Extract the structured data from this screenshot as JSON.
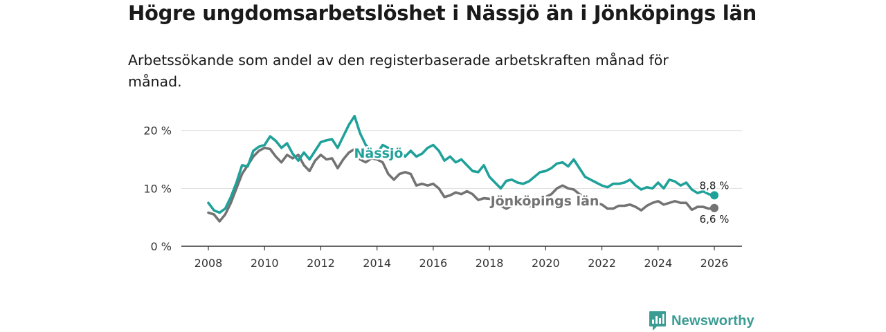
{
  "title": "Högre ungdomsarbetslöshet i Nässjö än i Jönköpings län",
  "subtitle": "Arbetssökande som andel av den registerbaserade arbetskraften månad för månad.",
  "brand": "Newsworthy",
  "colors": {
    "nassjo": "#1fa19a",
    "lan": "#737373",
    "grid": "#dddddd",
    "axis": "#333333",
    "brand": "#3a9c93"
  },
  "chart_data": {
    "type": "line",
    "title": "Högre ungdomsarbetslöshet i Nässjö än i Jönköpings län",
    "xlabel": "",
    "ylabel": "",
    "xlim": [
      2007.6,
      2026.9
    ],
    "ylim": [
      0,
      22
    ],
    "y_ticks": [
      0,
      10,
      20
    ],
    "y_tick_labels": [
      "0 %",
      "10 %",
      "20 %"
    ],
    "x_ticks": [
      "2008",
      "2010",
      "2012",
      "2014",
      "2016",
      "2018",
      "2020",
      "2022",
      "2024",
      "2026"
    ],
    "series": [
      {
        "name": "Nässjö",
        "label": "Nässjö",
        "end_label": "8,8 %",
        "points": [
          [
            2008.0,
            7.5
          ],
          [
            2008.2,
            6.2
          ],
          [
            2008.4,
            5.8
          ],
          [
            2008.6,
            6.5
          ],
          [
            2008.8,
            8.5
          ],
          [
            2009.0,
            11.0
          ],
          [
            2009.2,
            14.0
          ],
          [
            2009.4,
            13.8
          ],
          [
            2009.6,
            16.5
          ],
          [
            2009.8,
            17.2
          ],
          [
            2010.0,
            17.5
          ],
          [
            2010.2,
            19.0
          ],
          [
            2010.4,
            18.2
          ],
          [
            2010.6,
            17.0
          ],
          [
            2010.8,
            17.8
          ],
          [
            2011.0,
            16.0
          ],
          [
            2011.2,
            14.8
          ],
          [
            2011.4,
            16.2
          ],
          [
            2011.6,
            15.0
          ],
          [
            2011.8,
            16.5
          ],
          [
            2012.0,
            18.0
          ],
          [
            2012.2,
            18.3
          ],
          [
            2012.4,
            18.5
          ],
          [
            2012.6,
            17.0
          ],
          [
            2012.8,
            19.0
          ],
          [
            2013.0,
            21.0
          ],
          [
            2013.2,
            22.5
          ],
          [
            2013.4,
            19.5
          ],
          [
            2013.6,
            17.5
          ],
          [
            2013.8,
            16.5
          ],
          [
            2014.0,
            16.0
          ],
          [
            2014.2,
            17.5
          ],
          [
            2014.4,
            17.0
          ],
          [
            2014.6,
            15.8
          ],
          [
            2014.8,
            16.5
          ],
          [
            2015.0,
            15.5
          ],
          [
            2015.2,
            16.5
          ],
          [
            2015.4,
            15.5
          ],
          [
            2015.6,
            16.0
          ],
          [
            2015.8,
            17.0
          ],
          [
            2016.0,
            17.5
          ],
          [
            2016.2,
            16.5
          ],
          [
            2016.4,
            14.8
          ],
          [
            2016.6,
            15.5
          ],
          [
            2016.8,
            14.5
          ],
          [
            2017.0,
            15.0
          ],
          [
            2017.2,
            14.0
          ],
          [
            2017.4,
            13.0
          ],
          [
            2017.6,
            12.8
          ],
          [
            2017.8,
            14.0
          ],
          [
            2018.0,
            12.0
          ],
          [
            2018.2,
            11.0
          ],
          [
            2018.4,
            10.0
          ],
          [
            2018.6,
            11.3
          ],
          [
            2018.8,
            11.5
          ],
          [
            2019.0,
            11.0
          ],
          [
            2019.2,
            10.8
          ],
          [
            2019.4,
            11.2
          ],
          [
            2019.6,
            12.0
          ],
          [
            2019.8,
            12.8
          ],
          [
            2020.0,
            13.0
          ],
          [
            2020.2,
            13.5
          ],
          [
            2020.4,
            14.3
          ],
          [
            2020.6,
            14.5
          ],
          [
            2020.8,
            13.8
          ],
          [
            2021.0,
            15.0
          ],
          [
            2021.2,
            13.5
          ],
          [
            2021.4,
            12.0
          ],
          [
            2021.6,
            11.5
          ],
          [
            2021.8,
            11.0
          ],
          [
            2022.0,
            10.5
          ],
          [
            2022.2,
            10.2
          ],
          [
            2022.4,
            10.8
          ],
          [
            2022.6,
            10.8
          ],
          [
            2022.8,
            11.0
          ],
          [
            2023.0,
            11.5
          ],
          [
            2023.2,
            10.5
          ],
          [
            2023.4,
            9.8
          ],
          [
            2023.6,
            10.2
          ],
          [
            2023.8,
            10.0
          ],
          [
            2024.0,
            11.0
          ],
          [
            2024.2,
            10.0
          ],
          [
            2024.4,
            11.5
          ],
          [
            2024.6,
            11.2
          ],
          [
            2024.8,
            10.5
          ],
          [
            2025.0,
            11.0
          ],
          [
            2025.2,
            9.8
          ],
          [
            2025.4,
            9.2
          ],
          [
            2025.6,
            9.5
          ],
          [
            2025.8,
            9.0
          ],
          [
            2026.0,
            8.8
          ]
        ]
      },
      {
        "name": "Jönköpings län",
        "label": "Jönköpings län",
        "end_label": "6,6 %",
        "points": [
          [
            2008.0,
            5.8
          ],
          [
            2008.2,
            5.5
          ],
          [
            2008.4,
            4.3
          ],
          [
            2008.6,
            5.5
          ],
          [
            2008.8,
            7.5
          ],
          [
            2009.0,
            10.0
          ],
          [
            2009.2,
            12.5
          ],
          [
            2009.4,
            14.0
          ],
          [
            2009.6,
            15.5
          ],
          [
            2009.8,
            16.5
          ],
          [
            2010.0,
            17.0
          ],
          [
            2010.2,
            16.8
          ],
          [
            2010.4,
            15.5
          ],
          [
            2010.6,
            14.5
          ],
          [
            2010.8,
            15.8
          ],
          [
            2011.0,
            15.2
          ],
          [
            2011.2,
            15.8
          ],
          [
            2011.4,
            14.0
          ],
          [
            2011.6,
            13.0
          ],
          [
            2011.8,
            14.8
          ],
          [
            2012.0,
            15.8
          ],
          [
            2012.2,
            15.0
          ],
          [
            2012.4,
            15.2
          ],
          [
            2012.6,
            13.5
          ],
          [
            2012.8,
            15.0
          ],
          [
            2013.0,
            16.2
          ],
          [
            2013.2,
            16.8
          ],
          [
            2013.4,
            15.0
          ],
          [
            2013.6,
            14.5
          ],
          [
            2013.8,
            15.2
          ],
          [
            2014.0,
            15.0
          ],
          [
            2014.2,
            14.5
          ],
          [
            2014.4,
            12.5
          ],
          [
            2014.6,
            11.5
          ],
          [
            2014.8,
            12.5
          ],
          [
            2015.0,
            12.8
          ],
          [
            2015.2,
            12.5
          ],
          [
            2015.4,
            10.5
          ],
          [
            2015.6,
            10.8
          ],
          [
            2015.8,
            10.5
          ],
          [
            2016.0,
            10.8
          ],
          [
            2016.2,
            10.0
          ],
          [
            2016.4,
            8.5
          ],
          [
            2016.6,
            8.8
          ],
          [
            2016.8,
            9.3
          ],
          [
            2017.0,
            9.0
          ],
          [
            2017.2,
            9.5
          ],
          [
            2017.4,
            9.0
          ],
          [
            2017.6,
            8.0
          ],
          [
            2017.8,
            8.3
          ],
          [
            2018.0,
            8.2
          ],
          [
            2018.2,
            7.8
          ],
          [
            2018.4,
            7.0
          ],
          [
            2018.6,
            6.5
          ],
          [
            2018.8,
            7.0
          ],
          [
            2019.0,
            7.2
          ],
          [
            2019.2,
            7.5
          ],
          [
            2019.4,
            7.0
          ],
          [
            2019.6,
            6.8
          ],
          [
            2019.8,
            7.5
          ],
          [
            2020.0,
            8.5
          ],
          [
            2020.2,
            9.0
          ],
          [
            2020.4,
            10.0
          ],
          [
            2020.6,
            10.5
          ],
          [
            2020.8,
            10.0
          ],
          [
            2021.0,
            9.8
          ],
          [
            2021.2,
            9.0
          ],
          [
            2021.4,
            8.5
          ],
          [
            2021.6,
            8.0
          ],
          [
            2021.8,
            7.5
          ],
          [
            2022.0,
            7.2
          ],
          [
            2022.2,
            6.5
          ],
          [
            2022.4,
            6.5
          ],
          [
            2022.6,
            7.0
          ],
          [
            2022.8,
            7.0
          ],
          [
            2023.0,
            7.2
          ],
          [
            2023.2,
            6.8
          ],
          [
            2023.4,
            6.2
          ],
          [
            2023.6,
            7.0
          ],
          [
            2023.8,
            7.5
          ],
          [
            2024.0,
            7.8
          ],
          [
            2024.2,
            7.2
          ],
          [
            2024.4,
            7.5
          ],
          [
            2024.6,
            7.8
          ],
          [
            2024.8,
            7.5
          ],
          [
            2025.0,
            7.5
          ],
          [
            2025.2,
            6.3
          ],
          [
            2025.4,
            6.8
          ],
          [
            2025.6,
            6.8
          ],
          [
            2025.8,
            6.5
          ],
          [
            2026.0,
            6.6
          ]
        ]
      }
    ]
  }
}
